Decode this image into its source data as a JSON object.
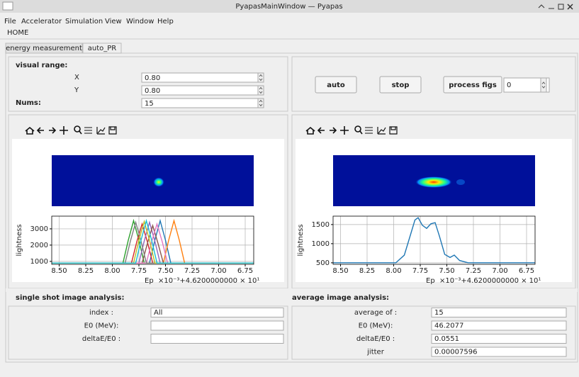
{
  "window": {
    "title": "PyapasMainWindow — Pyapas"
  },
  "menu": [
    "File",
    "Accelerator",
    "Simulation",
    "View",
    "Window",
    "Help"
  ],
  "toolbar": [
    "HOME"
  ],
  "tabs": [
    "energy measurement",
    "auto_PR"
  ],
  "visual_range": {
    "title": "visual range:",
    "x_label": "X",
    "x_value": "0.80",
    "y_label": "Y",
    "y_value": "0.80",
    "nums_label": "Nums:",
    "nums_value": "15"
  },
  "controls": {
    "auto": "auto",
    "stop": "stop",
    "process": "process figs",
    "process_value": "0"
  },
  "chart_data": [
    {
      "type": "line",
      "y_label": "lightness",
      "x_label": "Ep",
      "x_offset_label": "×10⁻³+4.6200000000 × 10¹",
      "grid": true,
      "xlim": [
        8.57,
        6.67
      ],
      "ylim": [
        820,
        3780
      ],
      "xticks": [
        {
          "value": 8.5,
          "label": "8.50"
        },
        8.25,
        {
          "value": 8,
          "label": "8.00"
        },
        7.75,
        {
          "value": 7.5,
          "label": "7.50"
        },
        7.25,
        {
          "value": 7,
          "label": "7.00"
        },
        6.75
      ],
      "yticks": [
        1000,
        2000,
        3000
      ],
      "series": [
        {
          "color": "#1f77b4",
          "x": [
            8.57,
            7.65,
            7.6,
            7.55,
            7.5,
            7.45,
            6.67
          ],
          "values": [
            900,
            900,
            2300,
            3500,
            2300,
            900,
            900
          ]
        },
        {
          "color": "#ff7f0e",
          "x": [
            8.57,
            7.52,
            7.47,
            7.42,
            7.37,
            7.32,
            6.67
          ],
          "values": [
            900,
            900,
            2300,
            3500,
            2300,
            900,
            900
          ]
        },
        {
          "color": "#2ca02c",
          "x": [
            8.57,
            7.9,
            7.85,
            7.8,
            7.75,
            7.7,
            6.67
          ],
          "values": [
            900,
            900,
            2300,
            3500,
            2300,
            900,
            900
          ]
        },
        {
          "color": "#d62728",
          "x": [
            8.57,
            7.82,
            7.77,
            7.72,
            7.67,
            7.62,
            6.67
          ],
          "values": [
            900,
            900,
            2200,
            3300,
            2200,
            900,
            900
          ]
        },
        {
          "color": "#9467bd",
          "x": [
            8.57,
            7.75,
            7.7,
            7.65,
            7.6,
            7.55,
            6.67
          ],
          "values": [
            900,
            900,
            2250,
            3400,
            2250,
            900,
            900
          ]
        },
        {
          "color": "#8c564b",
          "x": [
            8.57,
            7.72,
            7.67,
            7.62,
            7.57,
            7.52,
            6.67
          ],
          "values": [
            900,
            900,
            2100,
            3200,
            2100,
            900,
            900
          ]
        },
        {
          "color": "#e377c2",
          "x": [
            8.57,
            7.68,
            7.63,
            7.58,
            7.53,
            7.48,
            6.67
          ],
          "values": [
            900,
            900,
            2200,
            3300,
            2200,
            900,
            900
          ]
        },
        {
          "color": "#7f7f7f",
          "x": [
            8.57,
            7.88,
            7.83,
            7.78,
            7.73,
            7.68,
            6.67
          ],
          "values": [
            900,
            900,
            2250,
            3400,
            2250,
            900,
            900
          ]
        },
        {
          "color": "#bcbd22",
          "x": [
            8.57,
            7.8,
            7.75,
            7.7,
            7.65,
            7.6,
            6.67
          ],
          "values": [
            900,
            900,
            2300,
            3450,
            2300,
            900,
            900
          ]
        },
        {
          "color": "#17becf",
          "x": [
            8.57,
            7.78,
            7.73,
            7.68,
            7.63,
            7.58,
            6.67
          ],
          "values": [
            900,
            900,
            2300,
            3500,
            2300,
            900,
            900
          ]
        }
      ]
    },
    {
      "type": "line",
      "y_label": "lightness",
      "x_label": "Ep",
      "x_offset_label": "×10⁻³+4.6200000000 × 10¹",
      "grid": true,
      "xlim": [
        8.57,
        6.67
      ],
      "ylim": [
        460,
        1720
      ],
      "xticks": [
        {
          "value": 8.5,
          "label": "8.50"
        },
        8.25,
        {
          "value": 8,
          "label": "8.00"
        },
        7.75,
        {
          "value": 7.5,
          "label": "7.50"
        },
        7.25,
        {
          "value": 7,
          "label": "7.00"
        },
        6.75
      ],
      "yticks": [
        500,
        1000,
        1500
      ],
      "series": [
        {
          "color": "#1f77b4",
          "x": [
            8.57,
            7.98,
            7.9,
            7.84,
            7.8,
            7.77,
            7.73,
            7.69,
            7.65,
            7.61,
            7.57,
            7.52,
            7.47,
            7.43,
            7.38,
            7.3,
            6.67
          ],
          "values": [
            500,
            500,
            700,
            1250,
            1620,
            1680,
            1480,
            1400,
            1520,
            1550,
            1200,
            720,
            640,
            700,
            560,
            500,
            500
          ]
        }
      ]
    }
  ],
  "single": {
    "title": "single shot image analysis:",
    "rows": [
      {
        "label": "index :",
        "value": "All"
      },
      {
        "label": "E0 (MeV):"
      },
      {
        "label": "deltaE/E0 :"
      }
    ]
  },
  "average": {
    "title": "average image analysis:",
    "rows": [
      {
        "label": "average of :",
        "value": "15"
      },
      {
        "label": "E0  (MeV):",
        "value": "46.2077"
      },
      {
        "label": "deltaE/E0 :",
        "value": "0.0551"
      },
      {
        "label": "jitter",
        "value": "0.00007596"
      }
    ]
  }
}
